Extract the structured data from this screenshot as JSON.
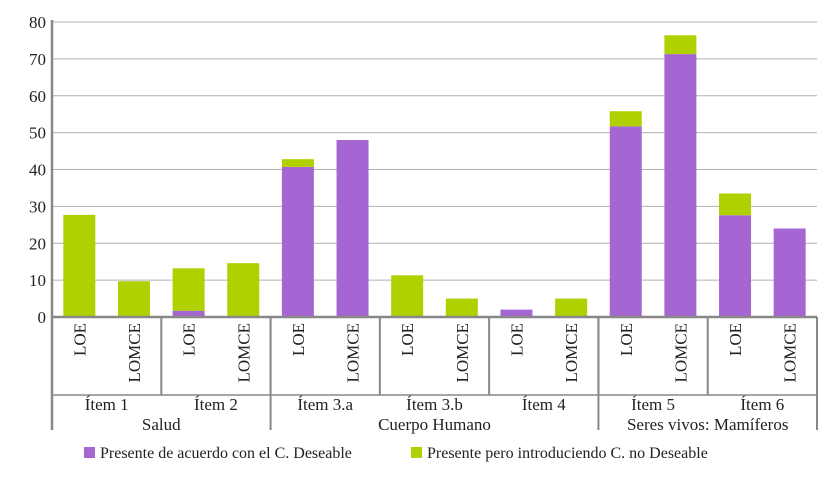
{
  "chart_data": {
    "type": "bar",
    "stacked": true,
    "title": "",
    "ylim": [
      0,
      80
    ],
    "yticks": [
      0,
      10,
      20,
      30,
      40,
      50,
      60,
      70,
      80
    ],
    "grid": true,
    "categories": [
      "LOE",
      "LOMCE",
      "LOE",
      "LOMCE",
      "LOE",
      "LOMCE",
      "LOE",
      "LOMCE",
      "LOE",
      "LOMCE",
      "LOE",
      "LOMCE",
      "LOE",
      "LOMCE"
    ],
    "items": [
      "Ítem 1",
      "Ítem 2",
      "Ítem 3.a",
      "Ítem 3.b",
      "Ítem 4",
      "Ítem 5",
      "Ítem 6"
    ],
    "groups": [
      {
        "label": "Salud",
        "items": 2
      },
      {
        "label": "Cuerpo Humano",
        "items": 3
      },
      {
        "label": "Seres vivos: Mamíferos",
        "items": 2
      }
    ],
    "series": [
      {
        "name": "Presente de acuerdo con el C. Deseable",
        "color": "#a566d4",
        "values": [
          0,
          0,
          1.7,
          0,
          40.7,
          48,
          0,
          0,
          2,
          0,
          51.7,
          71.3,
          27.6,
          24
        ]
      },
      {
        "name": "Presente pero introduciendo C. no Deseable",
        "color": "#b0d000",
        "values": [
          27.7,
          9.7,
          11.5,
          14.6,
          2.1,
          0,
          11.3,
          5,
          0,
          5,
          4.1,
          5.1,
          5.9,
          0
        ]
      }
    ],
    "legend": "bottom"
  }
}
